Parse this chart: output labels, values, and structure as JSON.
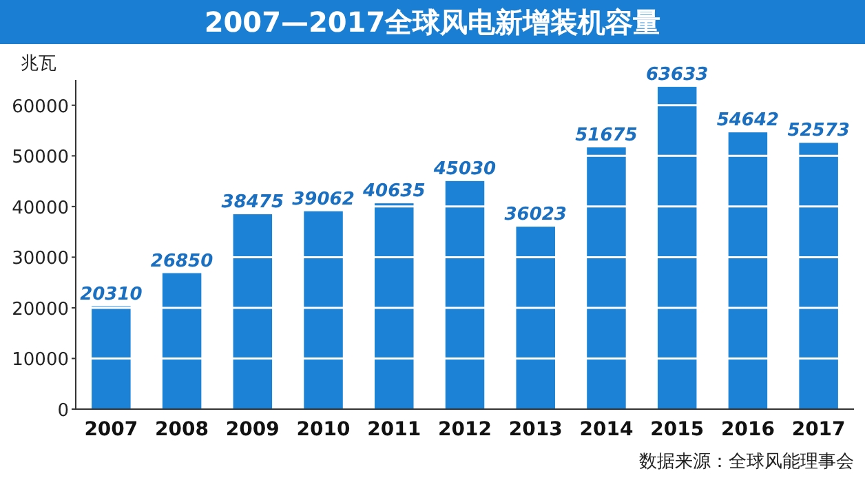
{
  "chart_data": {
    "type": "bar",
    "title": "2007—2017全球风电新增装机容量",
    "ylabel": "兆瓦",
    "categories": [
      "2007",
      "2008",
      "2009",
      "2010",
      "2011",
      "2012",
      "2013",
      "2014",
      "2015",
      "2016",
      "2017"
    ],
    "values": [
      20310,
      26850,
      38475,
      39062,
      40635,
      45030,
      36023,
      51675,
      63633,
      54642,
      52573
    ],
    "color": "#1b82d6",
    "ylim": [
      0,
      65000
    ],
    "yticks": [
      0,
      10000,
      20000,
      30000,
      40000,
      50000,
      60000
    ],
    "grid": "y",
    "data_labels": true,
    "annotations": [
      "数据来源：全球风能理事会"
    ]
  }
}
